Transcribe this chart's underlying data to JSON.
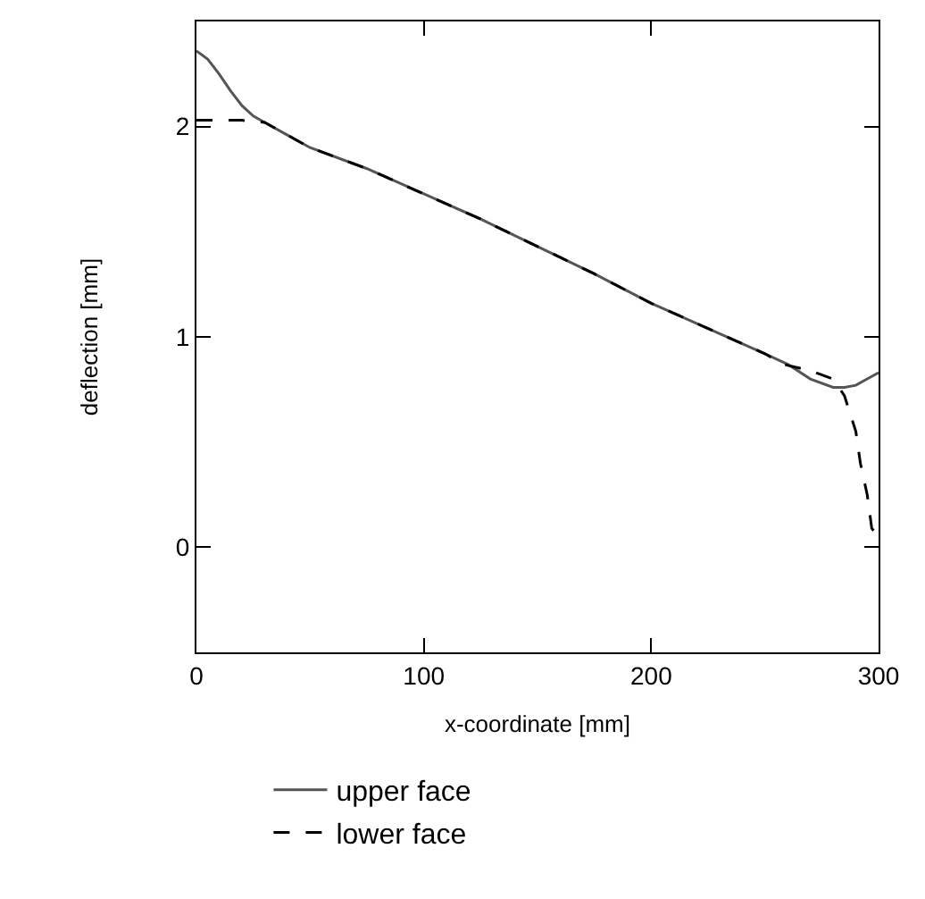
{
  "chart_data": {
    "type": "line",
    "xlabel": "x-coordinate [mm]",
    "ylabel": "deflection [mm]",
    "xlim": [
      0,
      300
    ],
    "ylim": [
      -0.5,
      2.5
    ],
    "xticks": [
      0,
      100,
      200,
      300
    ],
    "yticks": [
      0,
      1,
      2
    ],
    "legend": "bottom",
    "marker": "none",
    "series": [
      {
        "name": "upper face",
        "color": "#555555",
        "line_style": "solid",
        "x": [
          0,
          5,
          10,
          15,
          20,
          25,
          30,
          40,
          50,
          75,
          100,
          125,
          150,
          175,
          200,
          225,
          250,
          260,
          270,
          280,
          285,
          290,
          295,
          300
        ],
        "values": [
          2.36,
          2.32,
          2.25,
          2.17,
          2.1,
          2.05,
          2.02,
          1.96,
          1.9,
          1.8,
          1.68,
          1.56,
          1.43,
          1.3,
          1.16,
          1.04,
          0.92,
          0.87,
          0.8,
          0.76,
          0.76,
          0.77,
          0.8,
          0.83
        ]
      },
      {
        "name": "lower face",
        "color": "#000000",
        "line_style": "dashed",
        "x": [
          0,
          10,
          20,
          30,
          40,
          50,
          75,
          100,
          125,
          150,
          175,
          200,
          225,
          250,
          258,
          270,
          280,
          285,
          290,
          292,
          295,
          297,
          300
        ],
        "values": [
          2.03,
          2.03,
          2.03,
          2.02,
          1.96,
          1.9,
          1.8,
          1.68,
          1.56,
          1.43,
          1.3,
          1.16,
          1.04,
          0.92,
          0.87,
          0.84,
          0.8,
          0.72,
          0.55,
          0.4,
          0.25,
          0.09,
          0.05
        ]
      }
    ]
  }
}
